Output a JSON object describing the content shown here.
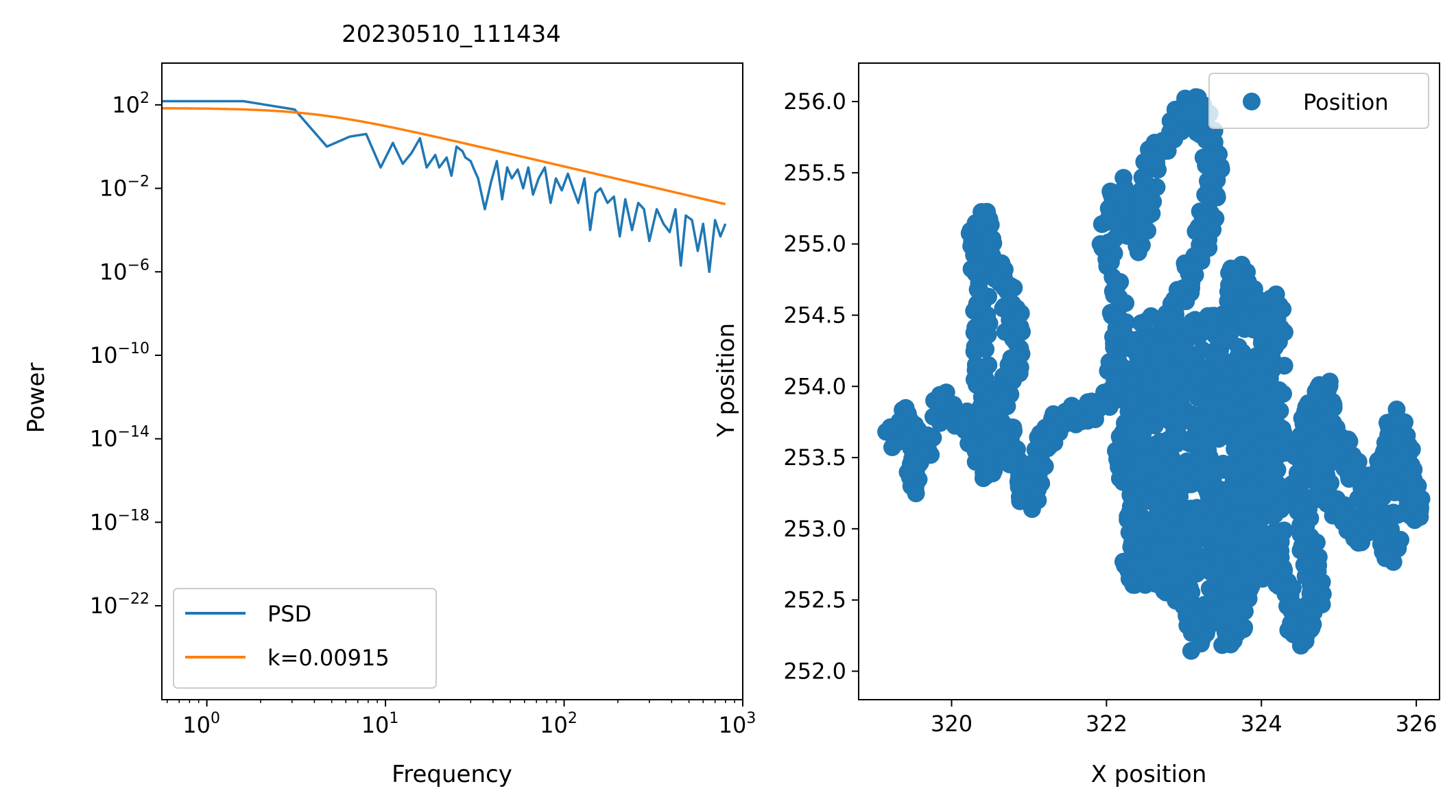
{
  "chart_data": [
    {
      "type": "line",
      "title": "20230510_111434",
      "xlabel": "Frequency",
      "ylabel": "Power",
      "xscale": "log",
      "yscale": "log",
      "xlim": [
        0.56,
        1000
      ],
      "ylim_exponent": [
        -26.5,
        4
      ],
      "x_ticks": [
        {
          "base": "10",
          "exp": "0"
        },
        {
          "base": "10",
          "exp": "1"
        },
        {
          "base": "10",
          "exp": "2"
        },
        {
          "base": "10",
          "exp": "3"
        }
      ],
      "y_ticks": [
        {
          "base": "10",
          "exp": "2"
        },
        {
          "base": "10",
          "exp": "−2"
        },
        {
          "base": "10",
          "exp": "−6"
        },
        {
          "base": "10",
          "exp": "−10"
        },
        {
          "base": "10",
          "exp": "−14"
        },
        {
          "base": "10",
          "exp": "−18"
        },
        {
          "base": "10",
          "exp": "−22"
        }
      ],
      "legend_position": "lower-left",
      "series": [
        {
          "name": "PSD",
          "color": "#1f77b4",
          "x": [
            0.56,
            1.6,
            3.1,
            4.7,
            6.3,
            7.8,
            9.4,
            11,
            12.5,
            14,
            15.6,
            17,
            19,
            20,
            22,
            23.4,
            25,
            27,
            28,
            30,
            31,
            33,
            36,
            39,
            42,
            45,
            48,
            51,
            55,
            59,
            63,
            67,
            72,
            78,
            84,
            90,
            97,
            105,
            112,
            120,
            130,
            140,
            150,
            160,
            175,
            190,
            205,
            220,
            240,
            260,
            280,
            300,
            330,
            360,
            390,
            420,
            450,
            480,
            520,
            560,
            600,
            650,
            700,
            750,
            800
          ],
          "y": [
            150.0,
            150.0,
            60.0,
            1.0,
            3.0,
            4.0,
            0.1,
            1.5,
            0.15,
            0.5,
            2.5,
            0.1,
            0.4,
            0.1,
            0.3,
            0.04,
            1.0,
            0.6,
            0.3,
            0.2,
            0.1,
            0.03,
            0.001,
            0.02,
            0.2,
            0.003,
            0.1,
            0.03,
            0.08,
            0.01,
            0.1,
            0.005,
            0.03,
            0.1,
            0.002,
            0.03,
            0.008,
            0.05,
            0.01,
            0.002,
            0.03,
            0.0001,
            0.006,
            0.01,
            0.002,
            0.004,
            5e-05,
            0.003,
            0.0001,
            0.002,
            0.001,
            3e-05,
            0.001,
            0.0002,
            8e-05,
            0.001,
            2e-06,
            0.0005,
            0.0003,
            1e-05,
            0.0002,
            1e-06,
            0.0003,
            5e-05,
            0.0002
          ]
        },
        {
          "name": "k=0.00915",
          "color": "#ff7f0e",
          "model": "A/(1+(f/fc)^2)",
          "A": 70,
          "fc": 4.0,
          "x_range": [
            0.56,
            800
          ]
        }
      ]
    },
    {
      "type": "scatter",
      "xlabel": "X position",
      "ylabel": "Y position",
      "xlim": [
        318.8,
        326.3
      ],
      "ylim": [
        251.8,
        256.27
      ],
      "x_ticks": [
        "320",
        "322",
        "324",
        "326"
      ],
      "y_ticks": [
        "252.0",
        "252.5",
        "253.0",
        "253.5",
        "254.0",
        "254.5",
        "255.0",
        "255.5",
        "256.0"
      ],
      "legend_position": "upper-right",
      "series": [
        {
          "name": "Position",
          "color": "#1f77b4",
          "path_waypoints": [
            [
              319.2,
              253.6
            ],
            [
              319.4,
              253.8
            ],
            [
              319.6,
              253.6
            ],
            [
              319.5,
              253.3
            ],
            [
              319.9,
              253.9
            ],
            [
              320.2,
              253.7
            ],
            [
              320.5,
              253.4
            ],
            [
              320.6,
              253.6
            ],
            [
              320.4,
              254.0
            ],
            [
              320.4,
              254.5
            ],
            [
              320.3,
              255.0
            ],
            [
              320.4,
              255.2
            ],
            [
              320.6,
              254.8
            ],
            [
              320.8,
              254.5
            ],
            [
              320.8,
              254.1
            ],
            [
              320.5,
              253.8
            ],
            [
              320.8,
              253.6
            ],
            [
              321.0,
              253.2
            ],
            [
              321.2,
              253.6
            ],
            [
              321.4,
              253.8
            ],
            [
              321.8,
              253.8
            ],
            [
              322.1,
              254.0
            ],
            [
              322.2,
              254.4
            ],
            [
              322.0,
              255.0
            ],
            [
              322.2,
              255.4
            ],
            [
              322.4,
              255.0
            ],
            [
              322.6,
              255.6
            ],
            [
              323.0,
              255.9
            ],
            [
              323.1,
              256.0
            ],
            [
              323.3,
              255.8
            ],
            [
              323.4,
              255.4
            ],
            [
              323.2,
              255.0
            ],
            [
              323.0,
              254.7
            ],
            [
              322.7,
              254.3
            ],
            [
              322.4,
              254.0
            ],
            [
              322.2,
              253.5
            ],
            [
              322.4,
              253.0
            ],
            [
              322.3,
              252.7
            ],
            [
              322.8,
              253.0
            ],
            [
              322.8,
              252.6
            ],
            [
              323.1,
              252.5
            ],
            [
              323.2,
              252.2
            ],
            [
              323.4,
              252.6
            ],
            [
              323.6,
              252.2
            ],
            [
              323.8,
              252.6
            ],
            [
              323.4,
              253.2
            ],
            [
              323.2,
              253.6
            ],
            [
              323.4,
              254.0
            ],
            [
              323.6,
              254.5
            ],
            [
              323.7,
              254.8
            ],
            [
              323.9,
              254.5
            ],
            [
              324.2,
              254.6
            ],
            [
              324.0,
              254.1
            ],
            [
              323.9,
              253.7
            ],
            [
              323.7,
              253.3
            ],
            [
              324.0,
              252.9
            ],
            [
              324.3,
              252.6
            ],
            [
              324.5,
              252.2
            ],
            [
              324.7,
              252.5
            ],
            [
              324.6,
              252.9
            ],
            [
              324.4,
              253.3
            ],
            [
              324.6,
              253.7
            ],
            [
              324.8,
              254.0
            ],
            [
              324.9,
              253.7
            ],
            [
              324.8,
              253.3
            ],
            [
              325.1,
              253.1
            ],
            [
              325.3,
              252.9
            ],
            [
              325.5,
              253.3
            ],
            [
              325.7,
              253.8
            ],
            [
              325.9,
              253.4
            ],
            [
              326.0,
              253.1
            ],
            [
              325.8,
              253.6
            ],
            [
              325.7,
              252.8
            ],
            [
              325.5,
              253.1
            ],
            [
              325.2,
              253.4
            ],
            [
              325.0,
              253.6
            ],
            [
              324.7,
              253.5
            ]
          ]
        }
      ]
    }
  ]
}
